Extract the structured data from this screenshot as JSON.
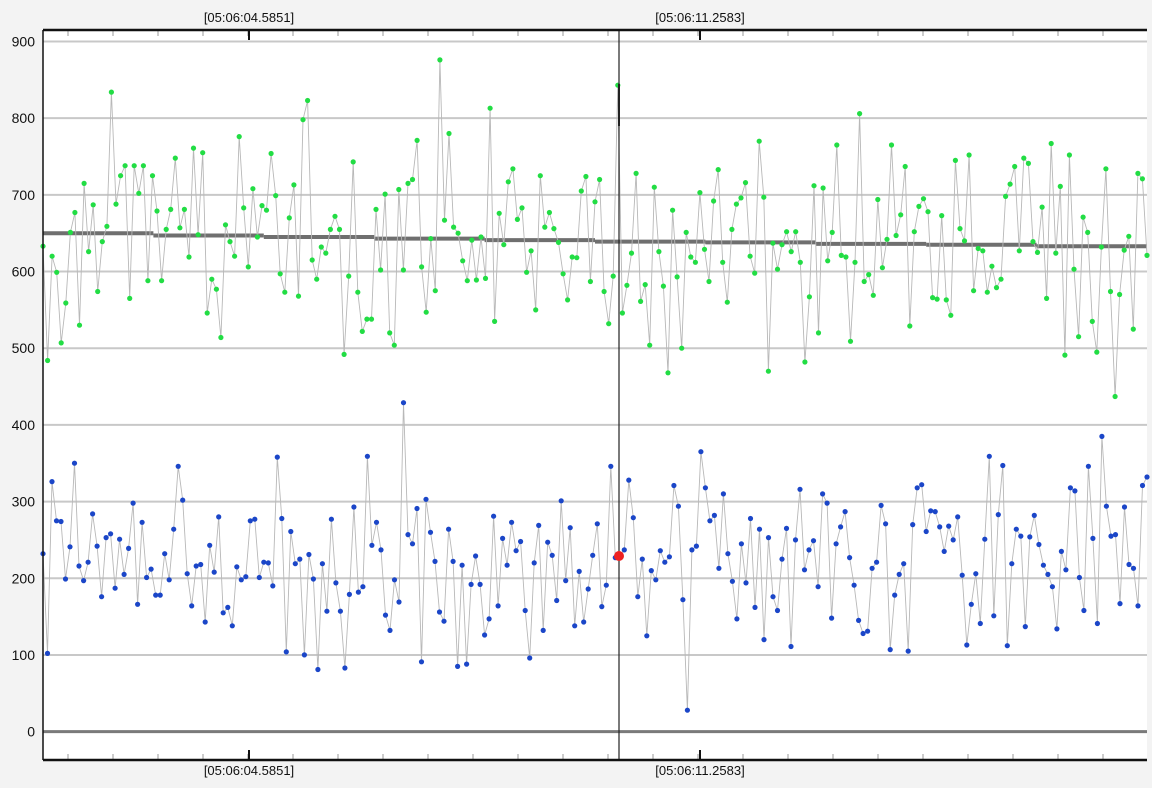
{
  "chart_data": {
    "type": "scatter",
    "title": "",
    "xlabel": "",
    "ylabel": "",
    "ylim": [
      -37,
      915
    ],
    "grid": true,
    "legend": "none",
    "y_ticks": [
      0,
      100,
      200,
      300,
      400,
      500,
      600,
      700,
      800,
      900
    ],
    "time_markers": [
      {
        "label": "[05:06:04.5851]"
      },
      {
        "label": "[05:06:11.2583]"
      }
    ],
    "colors": {
      "upper_series": "#22dd44",
      "lower_series": "#1b46c8",
      "trend_line": "#6f6f6f",
      "connector": "#b8b8b8",
      "cursor": "#222222",
      "highlight": "#ee2222",
      "grid_line": "#c8c8c8",
      "zero_line": "#7a7a7a"
    },
    "series": [
      {
        "values": [
          633,
          484,
          620,
          599,
          507,
          559,
          651,
          677,
          530,
          715,
          626,
          687,
          574,
          639,
          659,
          834,
          688,
          725,
          738,
          565,
          738,
          702,
          738,
          588,
          725,
          679,
          588,
          655,
          681,
          748,
          657,
          681,
          619,
          761,
          648,
          755,
          546,
          590,
          577,
          514,
          661,
          639,
          620,
          776,
          683,
          606,
          708,
          645,
          686,
          680,
          754,
          699,
          597,
          573,
          670,
          713,
          568,
          798,
          823,
          615,
          590,
          632,
          624,
          655,
          672,
          655,
          492,
          594,
          743,
          573,
          522,
          538,
          538,
          681,
          602,
          701,
          520,
          504,
          707,
          602,
          715,
          720,
          771,
          606,
          547,
          643,
          575,
          876,
          667,
          780,
          658,
          650,
          614,
          588,
          641,
          589,
          645,
          591,
          813,
          535,
          676,
          635,
          717,
          734,
          668,
          683,
          599,
          627,
          550,
          725,
          658,
          677,
          656,
          638,
          597,
          563,
          619,
          618,
          705,
          724,
          587,
          691,
          720,
          574,
          532,
          594,
          843,
          546,
          582,
          624,
          728,
          561,
          583,
          504,
          710,
          626,
          581,
          468,
          680,
          593,
          500,
          651,
          619,
          612,
          703,
          629,
          587,
          692,
          733,
          612,
          560,
          655,
          688,
          696,
          716,
          620,
          598,
          770,
          697,
          470,
          637,
          603,
          635,
          652,
          626,
          652,
          612,
          482,
          567,
          712,
          520,
          709,
          614,
          651,
          765,
          621,
          619,
          509,
          612,
          806,
          587,
          596,
          569,
          694,
          605,
          642,
          765,
          647,
          674,
          737,
          529,
          652,
          685,
          695,
          678,
          566,
          564,
          673,
          563,
          543,
          745,
          656,
          640,
          752,
          575,
          630,
          627,
          573,
          607,
          579,
          590,
          698,
          714,
          737,
          627,
          748,
          741,
          639,
          625,
          684,
          565,
          767,
          624,
          711,
          491,
          752,
          603,
          515,
          671,
          651,
          535,
          495,
          632,
          734,
          574,
          437,
          570,
          628,
          646,
          525,
          728,
          721,
          621
        ]
      },
      {
        "values": [
          232,
          102,
          326,
          275,
          274,
          199,
          241,
          350,
          216,
          197,
          221,
          284,
          242,
          176,
          253,
          258,
          187,
          251,
          205,
          239,
          298,
          166,
          273,
          201,
          212,
          178,
          178,
          232,
          198,
          264,
          346,
          302,
          206,
          164,
          216,
          218,
          143,
          243,
          208,
          280,
          155,
          162,
          138,
          215,
          198,
          202,
          275,
          277,
          201,
          221,
          220,
          190,
          358,
          278,
          104,
          261,
          219,
          225,
          100,
          231,
          199,
          81,
          219,
          157,
          277,
          194,
          157,
          83,
          179,
          293,
          182,
          189,
          359,
          243,
          273,
          237,
          152,
          132,
          198,
          169,
          429,
          257,
          245,
          291,
          91,
          303,
          260,
          222,
          156,
          144,
          264,
          222,
          85,
          217,
          88,
          192,
          229,
          192,
          126,
          147,
          281,
          164,
          252,
          217,
          273,
          236,
          248,
          158,
          96,
          220,
          269,
          132,
          247,
          230,
          171,
          301,
          197,
          266,
          138,
          209,
          143,
          186,
          230,
          271,
          163,
          191,
          346,
          227,
          230,
          237,
          328,
          279,
          176,
          225,
          125,
          210,
          198,
          236,
          221,
          228,
          321,
          294,
          172,
          28,
          237,
          242,
          365,
          318,
          275,
          282,
          213,
          310,
          232,
          196,
          147,
          245,
          194,
          278,
          162,
          264,
          120,
          253,
          176,
          158,
          225,
          265,
          111,
          250,
          316,
          211,
          237,
          249,
          189,
          310,
          298,
          148,
          245,
          267,
          287,
          227,
          191,
          145,
          128,
          131,
          213,
          221,
          295,
          271,
          107,
          178,
          205,
          219,
          105,
          270,
          318,
          322,
          261,
          288,
          287,
          267,
          235,
          268,
          250,
          280,
          204,
          113,
          166,
          206,
          141,
          251,
          359,
          151,
          283,
          347,
          112,
          219,
          264,
          255,
          137,
          254,
          282,
          244,
          217,
          205,
          189,
          134,
          235,
          211,
          318,
          314,
          201,
          158,
          346,
          252,
          141,
          385,
          294,
          255,
          257,
          167,
          293,
          218,
          213,
          164,
          321,
          332
        ]
      },
      {
        "values": [
          650,
          647,
          645,
          643,
          641,
          639,
          638,
          636,
          635,
          633
        ]
      }
    ],
    "highlight_point": {
      "value": 229
    }
  }
}
